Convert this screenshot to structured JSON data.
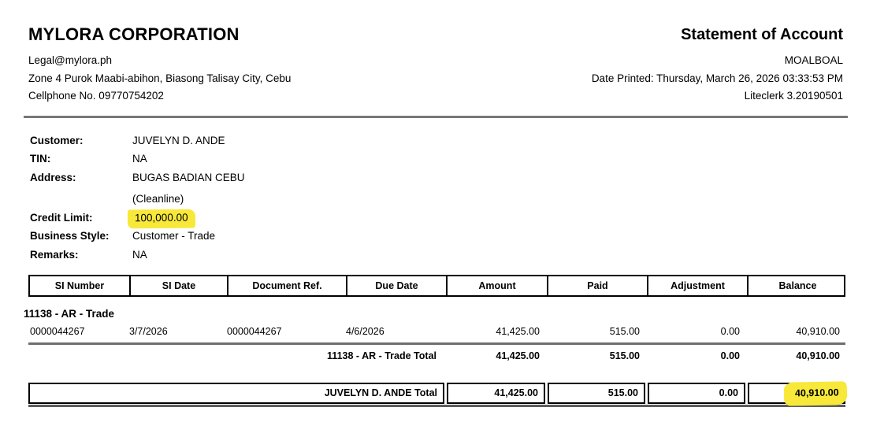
{
  "letterhead": {
    "company_name": "MYLORA CORPORATION",
    "email": "Legal@mylora.ph",
    "address": "Zone 4 Purok Maabi-abihon, Biasong Talisay City, Cebu",
    "phone": "Cellphone No. 09770754202",
    "report_title": "Statement of Account",
    "branch": "MOALBOAL",
    "date_printed": "Date Printed: Thursday, March 26, 2026 03:33:53 PM",
    "software_version": "Liteclerk 3.20190501"
  },
  "customer_info": {
    "customer_label": "Customer:",
    "customer_value": "JUVELYN D. ANDE",
    "tin_label": "TIN:",
    "tin_value": "NA",
    "address_label": "Address:",
    "address_value": "BUGAS BADIAN CEBU",
    "address_value2": "(Cleanline)",
    "credit_limit_label": "Credit Limit:",
    "credit_limit_value": "100,000.00",
    "business_style_label": "Business Style:",
    "business_style_value": "Customer - Trade",
    "remarks_label": "Remarks:",
    "remarks_value": "NA"
  },
  "table": {
    "columns": [
      "SI Number",
      "SI Date",
      "Document Ref.",
      "Due Date",
      "Amount",
      "Paid",
      "Adjustment",
      "Balance"
    ],
    "group": {
      "name": "11138 - AR - Trade",
      "rows": [
        {
          "si_number": "0000044267",
          "si_date": "3/7/2026",
          "document_ref": "0000044267",
          "due_date": "4/6/2026",
          "amount": "41,425.00",
          "paid": "515.00",
          "adjustment": "0.00",
          "balance": "40,910.00"
        }
      ],
      "total_label": "11138 - AR - Trade Total",
      "total": {
        "amount": "41,425.00",
        "paid": "515.00",
        "adjustment": "0.00",
        "balance": "40,910.00"
      }
    },
    "grand_total": {
      "label": "JUVELYN D. ANDE Total",
      "amount": "41,425.00",
      "paid": "515.00",
      "adjustment": "0.00",
      "balance": "40,910.00"
    }
  },
  "colors": {
    "highlight_yellow": "#f7e83a",
    "rule_gray": "#787878",
    "border_black": "#000000"
  }
}
